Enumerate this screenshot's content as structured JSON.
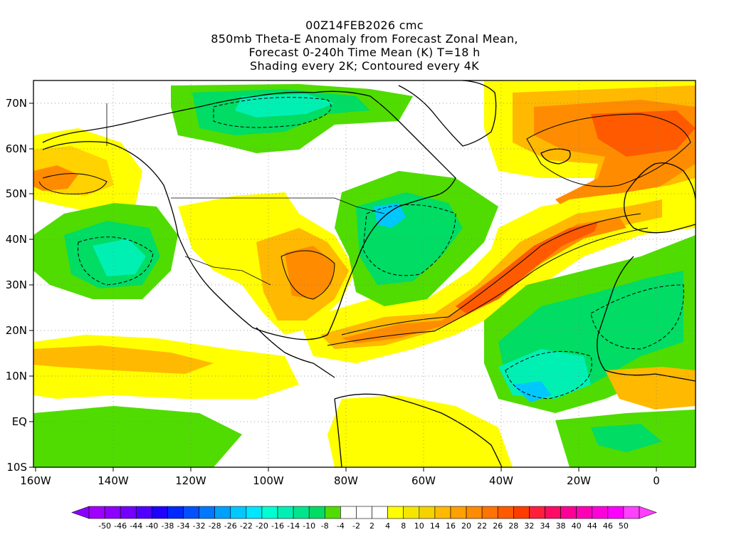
{
  "header": {
    "line1": "00Z14FEB2026 cmc",
    "line2": "850mb Theta-E Anomaly from Forecast Zonal Mean,",
    "line3": "Forecast 0-240h Time Mean (K) T=18 h",
    "line4": "Shading every 2K; Contoured every 4K"
  },
  "axes": {
    "lat_labels": [
      "70N",
      "60N",
      "50N",
      "40N",
      "30N",
      "20N",
      "10N",
      "EQ",
      "10S"
    ],
    "lon_labels": [
      "160W",
      "140W",
      "120W",
      "100W",
      "80W",
      "60W",
      "40W",
      "20W",
      "0"
    ],
    "lon_range": [
      "160W",
      "10E"
    ],
    "lat_range": [
      "10S",
      "75N"
    ],
    "grid": "dotted"
  },
  "colorbar": {
    "labels": [
      "-50",
      "-46",
      "-44",
      "-40",
      "-38",
      "-34",
      "-32",
      "-28",
      "-26",
      "-22",
      "-20",
      "-16",
      "-14",
      "-10",
      "-8",
      "-4",
      "-2",
      "2",
      "4",
      "8",
      "10",
      "14",
      "16",
      "20",
      "22",
      "26",
      "28",
      "32",
      "34",
      "38",
      "40",
      "44",
      "46",
      "50"
    ],
    "colors": [
      "#a000ff",
      "#8c00ff",
      "#7300ff",
      "#5000ff",
      "#1e00ff",
      "#0028ff",
      "#0050ff",
      "#0078ff",
      "#00a0ff",
      "#00c8ff",
      "#00e6ff",
      "#00ffd2",
      "#00f0b4",
      "#00e68c",
      "#00dc64",
      "#50dc00",
      "#ffffff",
      "#ffffff",
      "#ffffff",
      "#ffff00",
      "#f5e600",
      "#f5d200",
      "#ffb900",
      "#ffa000",
      "#ff8c00",
      "#ff7300",
      "#ff5a00",
      "#ff3c00",
      "#ff1e3c",
      "#ff0a64",
      "#ff0096",
      "#ff00b4",
      "#ff00dc",
      "#ff00ff",
      "#ff40ff"
    ],
    "left_arrow_color": "#8c00ff",
    "right_arrow_color": "#ff40ff"
  },
  "fields": {
    "palette": {
      "neutral": "#ffffff",
      "weak_pos": "#ffff00",
      "mid_pos": "#ffd200",
      "strong_pos": "#ff8c00",
      "very_strong_pos": "#ff5a00",
      "weak_neg": "#50dc00",
      "mid_neg": "#00dc64",
      "strong_neg": "#00f0b4",
      "very_strong_neg": "#00c8ff",
      "extreme_neg": "#0078ff",
      "contour": "#000000",
      "coast": "#000000"
    }
  }
}
